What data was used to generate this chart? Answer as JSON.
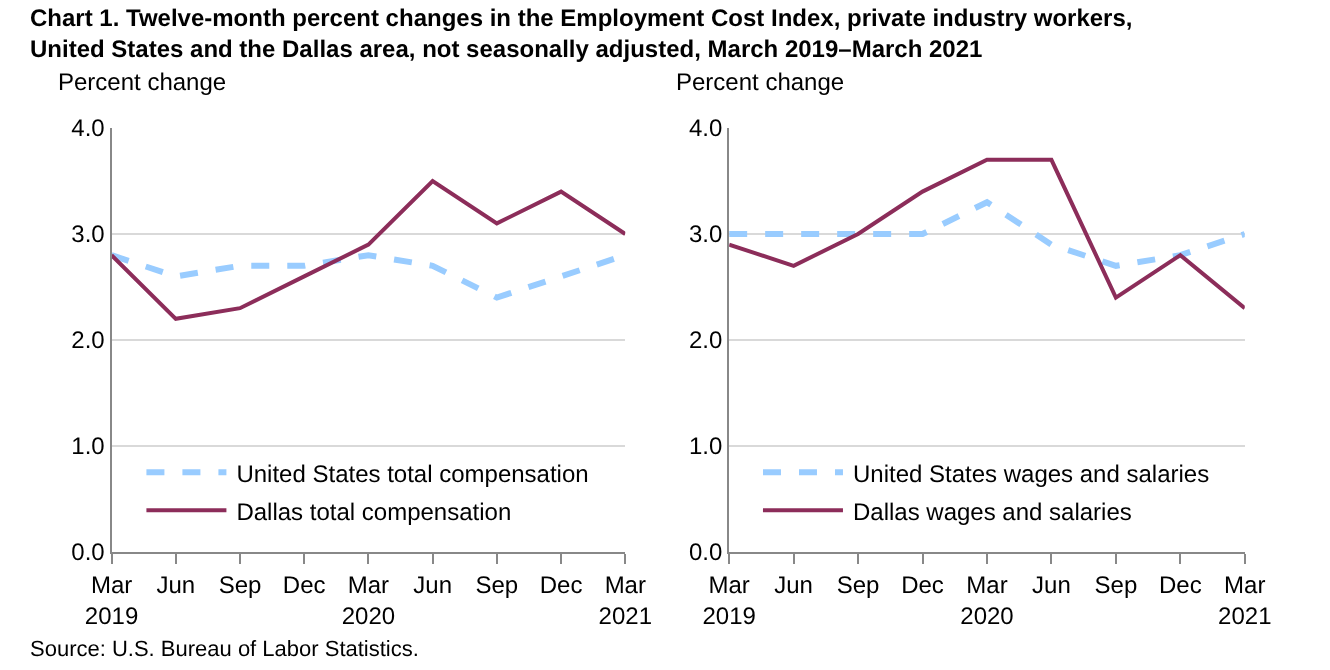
{
  "chart_data": [
    {
      "type": "line",
      "title": "Chart 1. Twelve-month percent changes in the Employment Cost Index, private industry workers,\nUnited States and the Dallas area, not seasonally adjusted, March 2019–March 2021",
      "ylabel": "Percent change",
      "annotations": [
        "Source: U.S. Bureau of Labor Statistics."
      ],
      "categories": [
        "Mar\n2019",
        "Jun",
        "Sep",
        "Dec",
        "Mar\n2020",
        "Jun",
        "Sep",
        "Dec",
        "Mar\n2021"
      ],
      "series": [
        {
          "name": "United States total compensation",
          "color": "#99ccff",
          "line_style": "dashed",
          "values": [
            2.8,
            2.6,
            2.7,
            2.7,
            2.8,
            2.7,
            2.4,
            2.6,
            2.8
          ]
        },
        {
          "name": "Dallas total compensation",
          "color": "#8c2d5a",
          "line_style": "solid",
          "values": [
            2.8,
            2.2,
            2.3,
            2.6,
            2.9,
            3.5,
            3.1,
            3.4,
            3.0
          ]
        }
      ],
      "ylim": [
        0,
        4
      ],
      "yticks": [
        {
          "value": 0,
          "label": "0.0"
        },
        {
          "value": 1,
          "label": "1.0"
        },
        {
          "value": 2,
          "label": "2.0"
        },
        {
          "value": 3,
          "label": "3.0"
        },
        {
          "value": 4,
          "label": "4.0"
        }
      ],
      "grid": "y",
      "legend": "bottom",
      "marker": "none"
    },
    {
      "type": "line",
      "ylabel": "Percent change",
      "categories": [
        "Mar\n2019",
        "Jun",
        "Sep",
        "Dec",
        "Mar\n2020",
        "Jun",
        "Sep",
        "Dec",
        "Mar\n2021"
      ],
      "series": [
        {
          "name": "United States wages and salaries",
          "color": "#99ccff",
          "line_style": "dashed",
          "values": [
            3.0,
            3.0,
            3.0,
            3.0,
            3.3,
            2.9,
            2.7,
            2.8,
            3.0
          ]
        },
        {
          "name": "Dallas wages and salaries",
          "color": "#8c2d5a",
          "line_style": "solid",
          "values": [
            2.9,
            2.7,
            3.0,
            3.4,
            3.7,
            3.7,
            2.4,
            2.8,
            2.3
          ]
        }
      ],
      "ylim": [
        0,
        4
      ],
      "yticks": [
        {
          "value": 0,
          "label": "0.0"
        },
        {
          "value": 1,
          "label": "1.0"
        },
        {
          "value": 2,
          "label": "2.0"
        },
        {
          "value": 3,
          "label": "3.0"
        },
        {
          "value": 4,
          "label": "4.0"
        }
      ],
      "grid": "y",
      "legend": "bottom",
      "marker": "none"
    }
  ]
}
